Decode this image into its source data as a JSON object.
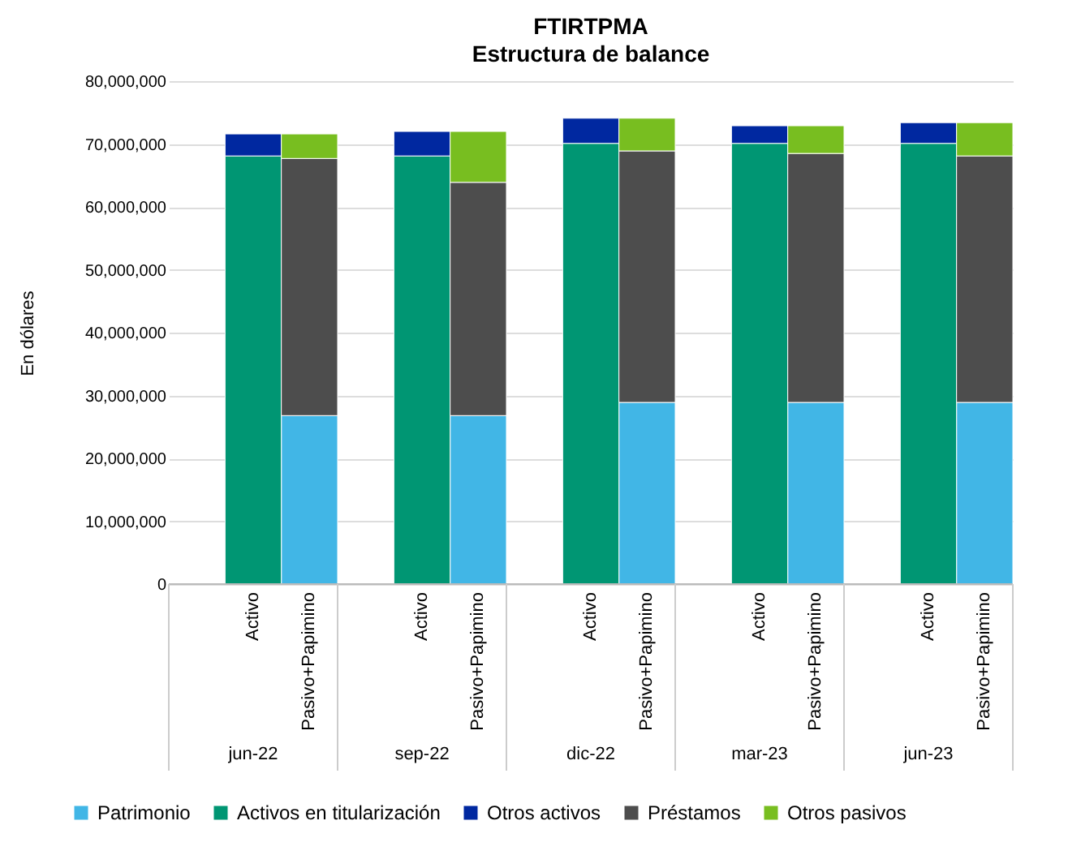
{
  "chart_data": {
    "type": "bar",
    "title": "FTIRTPMA",
    "subtitle": "Estructura de balance",
    "ylabel": "En dólares",
    "categories": [
      "Activo",
      "Pasivo+Papimino",
      "Activo",
      "Pasivo+Papimino",
      "Activo",
      "Pasivo+Papimino",
      "Activo",
      "Pasivo+Papimino",
      "Activo",
      "Pasivo+Papimino"
    ],
    "annotations": [
      "jun-22",
      "sep-22",
      "dic-22",
      "mar-23",
      "jun-23"
    ],
    "stacked": true,
    "grid": "y",
    "legend": "bottom",
    "ylim": [
      0,
      80000000
    ],
    "yticks": [
      0,
      {
        "value": 10000000,
        "label": "10,000,000"
      },
      {
        "value": 20000000,
        "label": "20,000,000"
      },
      {
        "value": 30000000,
        "label": "30,000,000"
      },
      {
        "value": 40000000,
        "label": "40,000,000"
      },
      {
        "value": 50000000,
        "label": "50,000,000"
      },
      {
        "value": 60000000,
        "label": "60,000,000"
      },
      {
        "value": 70000000,
        "label": "70,000,000"
      },
      {
        "value": 80000000,
        "label": "80,000,000"
      }
    ],
    "series": [
      {
        "name": "Patrimonio",
        "color": "#41b6e6",
        "values": [
          null,
          26800000,
          null,
          26800000,
          null,
          28900000,
          null,
          28900000,
          null,
          28900000
        ]
      },
      {
        "name": "Activos en titularización",
        "color": "#009673",
        "values": [
          68100000,
          null,
          68100000,
          null,
          70100000,
          null,
          70100000,
          null,
          70100000,
          null
        ]
      },
      {
        "name": "Otros activos",
        "color": "#0028a0",
        "values": [
          3500000,
          null,
          3900000,
          null,
          4000000,
          null,
          2800000,
          null,
          3300000,
          null
        ]
      },
      {
        "name": "Préstamos",
        "color": "#4d4d4d",
        "values": [
          null,
          40900000,
          null,
          37100000,
          null,
          40000000,
          null,
          39600000,
          null,
          39200000
        ]
      },
      {
        "name": "Otros pasivos",
        "color": "#78be20",
        "values": [
          null,
          3900000,
          null,
          8100000,
          null,
          5200000,
          null,
          4400000,
          null,
          5300000
        ]
      }
    ]
  }
}
